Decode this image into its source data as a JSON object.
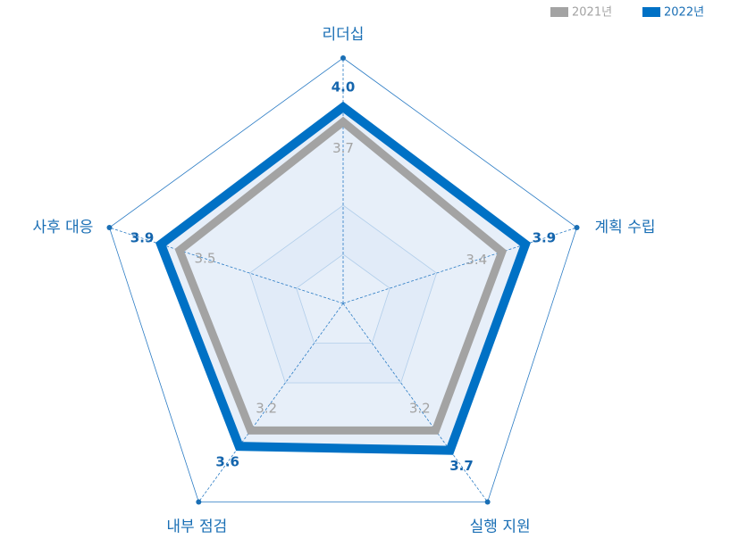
{
  "chart_data": {
    "type": "radar",
    "categories": [
      "리더십",
      "계획 수립",
      "실행 지원",
      "내부 점검",
      "사후 대응"
    ],
    "series": [
      {
        "name": "2021년",
        "color": "#a3a3a3",
        "values": [
          3.7,
          3.4,
          3.2,
          3.2,
          3.5
        ]
      },
      {
        "name": "2022년",
        "color": "#0071c5",
        "values": [
          4.0,
          3.9,
          3.7,
          3.6,
          3.9
        ],
        "value_labels": [
          "4.0",
          "3.9",
          "3.7",
          "3.6",
          "3.9"
        ]
      }
    ],
    "rlim": [
      0,
      5
    ],
    "rticks": [
      1,
      2,
      5
    ],
    "legend": "top-right"
  }
}
